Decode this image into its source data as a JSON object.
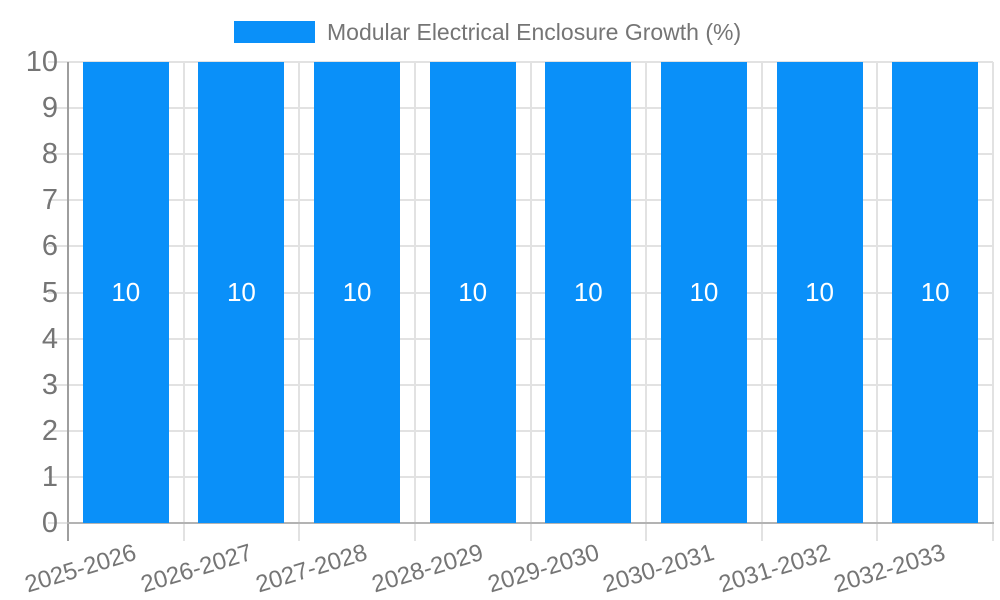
{
  "chart_data": {
    "type": "bar",
    "title": "Modular Electrical Enclosure Growth (%)",
    "categories": [
      "2025-2026",
      "2026-2027",
      "2027-2028",
      "2028-2029",
      "2029-2030",
      "2030-2031",
      "2031-2032",
      "2032-2033"
    ],
    "values": [
      10,
      10,
      10,
      10,
      10,
      10,
      10,
      10
    ],
    "value_labels": [
      "10",
      "10",
      "10",
      "10",
      "10",
      "10",
      "10",
      "10"
    ],
    "xlabel": "",
    "ylabel": "",
    "ylim": [
      0,
      10
    ],
    "y_ticks": [
      0,
      1,
      2,
      3,
      4,
      5,
      6,
      7,
      8,
      9,
      10
    ],
    "grid": true,
    "legend_position": "top",
    "colors": {
      "bar": "#0a90f9",
      "value_label": "#ffffff",
      "axis_text": "#757575",
      "gridline": "#e2e2e2",
      "y_axis_line": "#9e9e9e",
      "x_axis_line": "#b3b3b3",
      "background": "#ffffff"
    }
  }
}
